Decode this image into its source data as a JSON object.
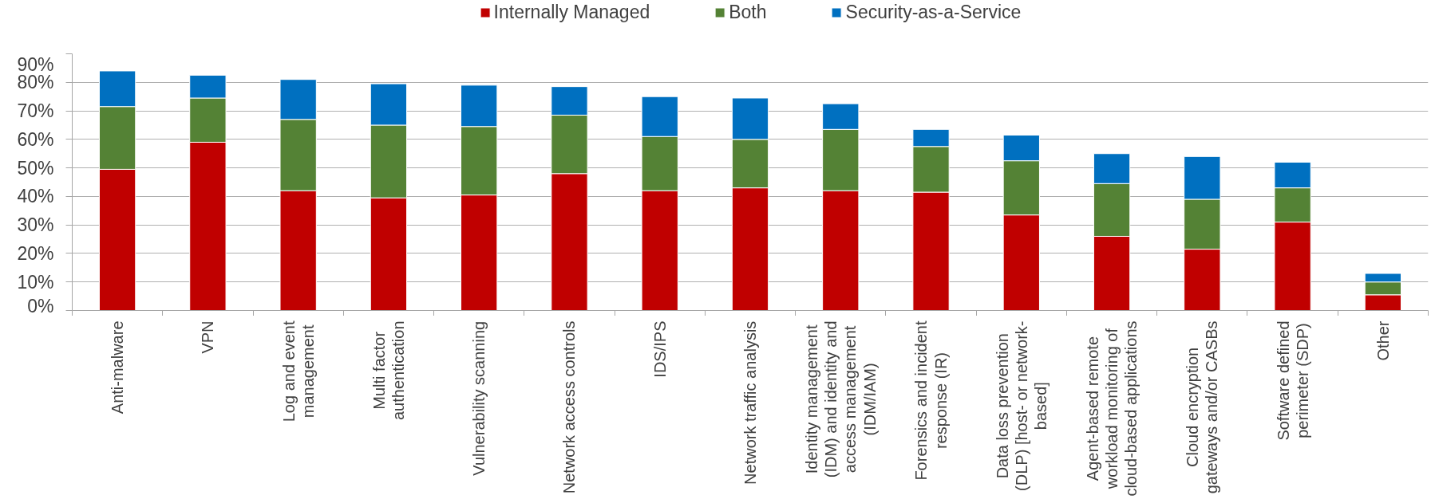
{
  "chart_data": {
    "type": "bar",
    "stacked": true,
    "categories": [
      "Anti-malware",
      "VPN",
      "Log and event management",
      "Multi factor authentication",
      "Vulnerability scanning",
      "Network access controls",
      "IDS/IPS",
      "Network traffic analysis",
      "Identity management (IDM) and identity and access management (IDM/IAM)",
      "Forensics and incident response (IR)",
      "Data loss prevention (DLP) [host- or network-based]",
      "Agent-based remote workload monitoring of cloud-based applications",
      "Cloud encryption gateways and/or CASBs",
      "Software defined perimeter (SDP)",
      "Other"
    ],
    "series": [
      {
        "name": "Internally Managed",
        "color": "#c00000",
        "values": [
          49.5,
          59,
          42,
          39.5,
          40.5,
          48,
          42,
          43,
          42,
          41.5,
          33.5,
          26,
          21.5,
          31,
          5.5
        ]
      },
      {
        "name": "Both",
        "color": "#548235",
        "values": [
          22,
          15.5,
          25,
          25.5,
          24,
          20.5,
          19,
          17,
          21.5,
          16,
          19,
          18.5,
          17.5,
          12,
          4.5
        ]
      },
      {
        "name": "Security-as-a-Service",
        "color": "#0070c0",
        "values": [
          12.5,
          8,
          14,
          14.5,
          14.5,
          10,
          14,
          14.5,
          9,
          6,
          9,
          10.5,
          15,
          9,
          3
        ]
      }
    ],
    "ylim": [
      0,
      90
    ],
    "yticks": [
      {
        "value": 0,
        "label": "0%"
      },
      {
        "value": 10,
        "label": "10%"
      },
      {
        "value": 20,
        "label": "20%"
      },
      {
        "value": 30,
        "label": "30%"
      },
      {
        "value": 40,
        "label": "40%"
      },
      {
        "value": 50,
        "label": "50%"
      },
      {
        "value": 60,
        "label": "60%"
      },
      {
        "value": 70,
        "label": "70%"
      },
      {
        "value": 80,
        "label": "80%"
      },
      {
        "value": 90,
        "label": "90%"
      }
    ],
    "grid": "y",
    "legend": "top"
  }
}
